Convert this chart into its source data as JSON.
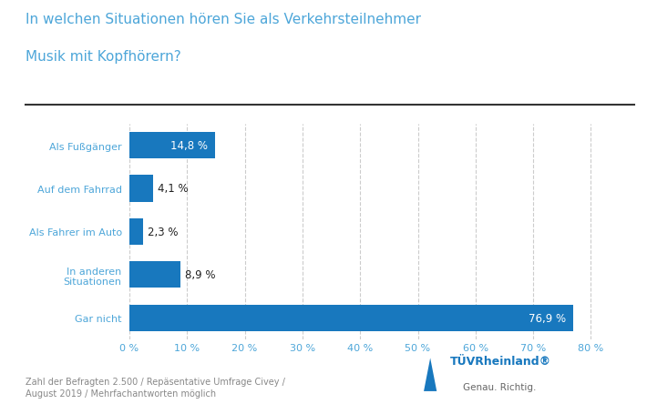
{
  "title_line1": "In welchen Situationen hören Sie als Verkehrsteilnehmer",
  "title_line2": "Musik mit Kopfhörern?",
  "categories": [
    "Als Fußgänger",
    "Auf dem Fahrrad",
    "Als Fahrer im Auto",
    "In anderen\nSituationen",
    "Gar nicht"
  ],
  "values": [
    14.8,
    4.1,
    2.3,
    8.9,
    76.9
  ],
  "bar_color": "#1878be",
  "label_color_inside": "#ffffff",
  "label_color_outside": "#222222",
  "value_labels": [
    "14,8 %",
    "4,1 %",
    "2,3 %",
    "8,9 %",
    "76,9 %"
  ],
  "xlim": [
    0,
    83
  ],
  "xticks": [
    0,
    10,
    20,
    30,
    40,
    50,
    60,
    70,
    80
  ],
  "xtick_labels": [
    "0 %",
    "10 %",
    "20 %",
    "30 %",
    "40 %",
    "50 %",
    "60 %",
    "70 %",
    "80 %"
  ],
  "footnote": "Zahl der Befragten 2.500 / Repäsentative Umfrage Civey /\nAugust 2019 / Mehrfachantworten möglich",
  "background_color": "#ffffff",
  "grid_color": "#cccccc",
  "title_color": "#4da6d9",
  "tick_label_color": "#4da6d9",
  "category_label_color": "#4da6d9",
  "tuv_text": "TÜVRheinland®",
  "tuv_subtext": "Genau. Richtig.",
  "separator_line_color": "#333333"
}
